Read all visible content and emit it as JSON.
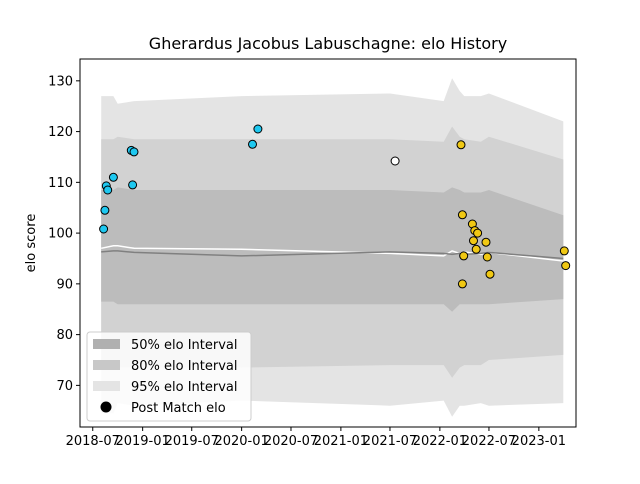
{
  "chart_data": {
    "type": "scatter",
    "title": "Gherardus Jacobus Labuschagne: elo History",
    "xlabel": "",
    "ylabel": "elo score",
    "xlim": [
      "2018-05-15",
      "2023-05-18"
    ],
    "ylim": [
      61.8,
      134.3
    ],
    "x_ticks": [
      "2018-07",
      "2019-01",
      "2019-07",
      "2020-01",
      "2020-07",
      "2021-01",
      "2021-07",
      "2022-01",
      "2022-07",
      "2023-01"
    ],
    "y_ticks": [
      70,
      80,
      90,
      100,
      110,
      120,
      130
    ],
    "grid": false,
    "legend_position": "lower-left",
    "legend": [
      {
        "label": "50% elo Interval",
        "color": "#b0b0b0",
        "kind": "patch"
      },
      {
        "label": "80% elo Interval",
        "color": "#c8c8c8",
        "kind": "patch"
      },
      {
        "label": "95% elo Interval",
        "color": "#e4e4e4",
        "kind": "patch"
      },
      {
        "label": "Post Match elo",
        "color": "#000000",
        "kind": "marker"
      }
    ],
    "bands": [
      {
        "name": "95% elo Interval",
        "color": "#e4e4e4",
        "x": [
          "2018-08-01",
          "2018-09-15",
          "2018-10-01",
          "2018-12-01",
          "2020-01-01",
          "2021-07-01",
          "2022-01-15",
          "2022-02-15",
          "2022-03-15",
          "2022-04-01",
          "2022-06-01",
          "2022-07-01",
          "2023-04-01"
        ],
        "upper": [
          127,
          127,
          125.5,
          126,
          127,
          127.5,
          126,
          130.5,
          128,
          127,
          127,
          127.5,
          122
        ],
        "lower": [
          64.5,
          64.5,
          66.5,
          66,
          67,
          66,
          67,
          63.8,
          66,
          66,
          66.5,
          66,
          66.5
        ]
      },
      {
        "name": "80% elo Interval",
        "color": "#d2d2d2",
        "x": [
          "2018-08-01",
          "2018-09-15",
          "2018-10-01",
          "2018-12-01",
          "2020-01-01",
          "2021-07-01",
          "2022-01-15",
          "2022-02-15",
          "2022-03-15",
          "2022-04-01",
          "2022-06-01",
          "2022-07-01",
          "2023-04-01"
        ],
        "upper": [
          118.5,
          118.5,
          119,
          118.5,
          118.5,
          118.5,
          118,
          121,
          119,
          118.5,
          118,
          119,
          114.5
        ],
        "lower": [
          74.5,
          74.5,
          73.5,
          73.5,
          73.5,
          74,
          74,
          71.5,
          73.5,
          74,
          74,
          75,
          76
        ]
      },
      {
        "name": "50% elo Interval",
        "color": "#bcbcbc",
        "x": [
          "2018-08-01",
          "2018-09-15",
          "2018-10-01",
          "2018-12-01",
          "2020-01-01",
          "2021-07-01",
          "2022-01-15",
          "2022-02-15",
          "2022-03-15",
          "2022-04-01",
          "2022-06-01",
          "2022-07-01",
          "2023-04-01"
        ],
        "upper": [
          108.5,
          108.5,
          109,
          108.5,
          108.5,
          108.5,
          108,
          109,
          108.5,
          108,
          108,
          108.5,
          103.5
        ],
        "lower": [
          86.5,
          86.5,
          86,
          86,
          86,
          86,
          86,
          84.5,
          86,
          86,
          86,
          86,
          87
        ]
      }
    ],
    "lines": [
      {
        "color": "#ffffff",
        "x": [
          "2018-08-01",
          "2018-09-15",
          "2018-10-01",
          "2018-12-01",
          "2020-01-01",
          "2021-07-01",
          "2022-01-15",
          "2022-02-15",
          "2022-03-15",
          "2022-04-01",
          "2022-06-01",
          "2022-07-01",
          "2023-04-01"
        ],
        "y": [
          97,
          97.5,
          97.5,
          97,
          96.8,
          96,
          95.5,
          96.5,
          96,
          96.3,
          95.8,
          96.2,
          94.5
        ]
      },
      {
        "color": "#808080",
        "x": [
          "2018-08-01",
          "2018-09-15",
          "2018-10-01",
          "2018-12-01",
          "2020-01-01",
          "2021-07-01",
          "2022-01-15",
          "2022-02-15",
          "2022-03-15",
          "2022-04-01",
          "2022-06-01",
          "2022-07-01",
          "2023-04-01"
        ],
        "y": [
          96.3,
          96.5,
          96.5,
          96.2,
          95.5,
          96.3,
          96,
          95.8,
          96,
          95.8,
          96,
          96.2,
          95
        ]
      }
    ],
    "series": [
      {
        "color": "#1ec8f0",
        "points": [
          {
            "x": "2018-08-10",
            "y": 100.8
          },
          {
            "x": "2018-08-15",
            "y": 104.5
          },
          {
            "x": "2018-08-20",
            "y": 109.3
          },
          {
            "x": "2018-08-25",
            "y": 108.5
          },
          {
            "x": "2018-09-15",
            "y": 111.0
          },
          {
            "x": "2018-11-20",
            "y": 116.3
          },
          {
            "x": "2018-11-30",
            "y": 116.0
          },
          {
            "x": "2018-11-25",
            "y": 109.5
          },
          {
            "x": "2020-02-10",
            "y": 117.5
          },
          {
            "x": "2020-03-01",
            "y": 120.5
          }
        ]
      },
      {
        "color": "#ffffff",
        "points": [
          {
            "x": "2021-07-20",
            "y": 114.2
          }
        ]
      },
      {
        "color": "#f0c814",
        "points": [
          {
            "x": "2022-03-20",
            "y": 117.4
          },
          {
            "x": "2022-03-25",
            "y": 103.6
          },
          {
            "x": "2022-03-30",
            "y": 95.5
          },
          {
            "x": "2022-03-25",
            "y": 90.0
          },
          {
            "x": "2022-05-01",
            "y": 101.8
          },
          {
            "x": "2022-05-10",
            "y": 100.5
          },
          {
            "x": "2022-05-20",
            "y": 100.0
          },
          {
            "x": "2022-05-05",
            "y": 98.5
          },
          {
            "x": "2022-05-15",
            "y": 96.8
          },
          {
            "x": "2022-06-20",
            "y": 98.2
          },
          {
            "x": "2022-06-25",
            "y": 95.3
          },
          {
            "x": "2022-07-05",
            "y": 91.9
          },
          {
            "x": "2023-04-05",
            "y": 96.5
          },
          {
            "x": "2023-04-10",
            "y": 93.6
          }
        ]
      }
    ]
  }
}
